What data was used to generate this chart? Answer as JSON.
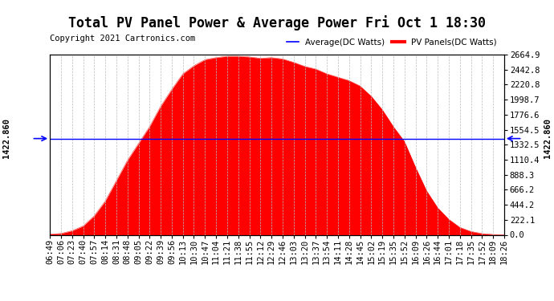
{
  "title": "Total PV Panel Power & Average Power Fri Oct 1 18:30",
  "copyright": "Copyright 2021 Cartronics.com",
  "legend_avg": "Average(DC Watts)",
  "legend_pv": "PV Panels(DC Watts)",
  "avg_value": 1422.86,
  "ymin": 0.0,
  "ymax": 2664.9,
  "background_color": "#ffffff",
  "fill_color": "#ff0000",
  "line_color": "#ff0000",
  "avg_line_color": "#0000ff",
  "grid_color": "#bbbbbb",
  "title_fontsize": 12,
  "copyright_fontsize": 7.5,
  "tick_fontsize": 7.5,
  "yticks_right": [
    0.0,
    222.1,
    444.2,
    666.2,
    888.3,
    1110.4,
    1332.5,
    1554.5,
    1776.6,
    1998.7,
    2220.8,
    2442.8,
    2664.9
  ],
  "x_times": [
    "06:49",
    "07:06",
    "07:23",
    "07:40",
    "07:57",
    "08:14",
    "08:31",
    "08:48",
    "09:05",
    "09:22",
    "09:39",
    "09:56",
    "10:13",
    "10:30",
    "10:47",
    "11:04",
    "11:21",
    "11:38",
    "11:55",
    "12:12",
    "12:29",
    "12:46",
    "13:03",
    "13:20",
    "13:37",
    "13:54",
    "14:11",
    "14:28",
    "14:45",
    "15:02",
    "15:19",
    "15:35",
    "15:52",
    "16:09",
    "16:26",
    "16:44",
    "17:01",
    "17:18",
    "17:35",
    "17:52",
    "18:09",
    "18:26"
  ],
  "pv_values": [
    10,
    20,
    60,
    130,
    280,
    500,
    800,
    1100,
    1350,
    1600,
    1900,
    2150,
    2380,
    2500,
    2590,
    2620,
    2640,
    2640,
    2630,
    2610,
    2620,
    2600,
    2550,
    2490,
    2450,
    2380,
    2330,
    2280,
    2200,
    2050,
    1850,
    1600,
    1380,
    1000,
    650,
    400,
    230,
    110,
    50,
    18,
    5,
    2
  ]
}
